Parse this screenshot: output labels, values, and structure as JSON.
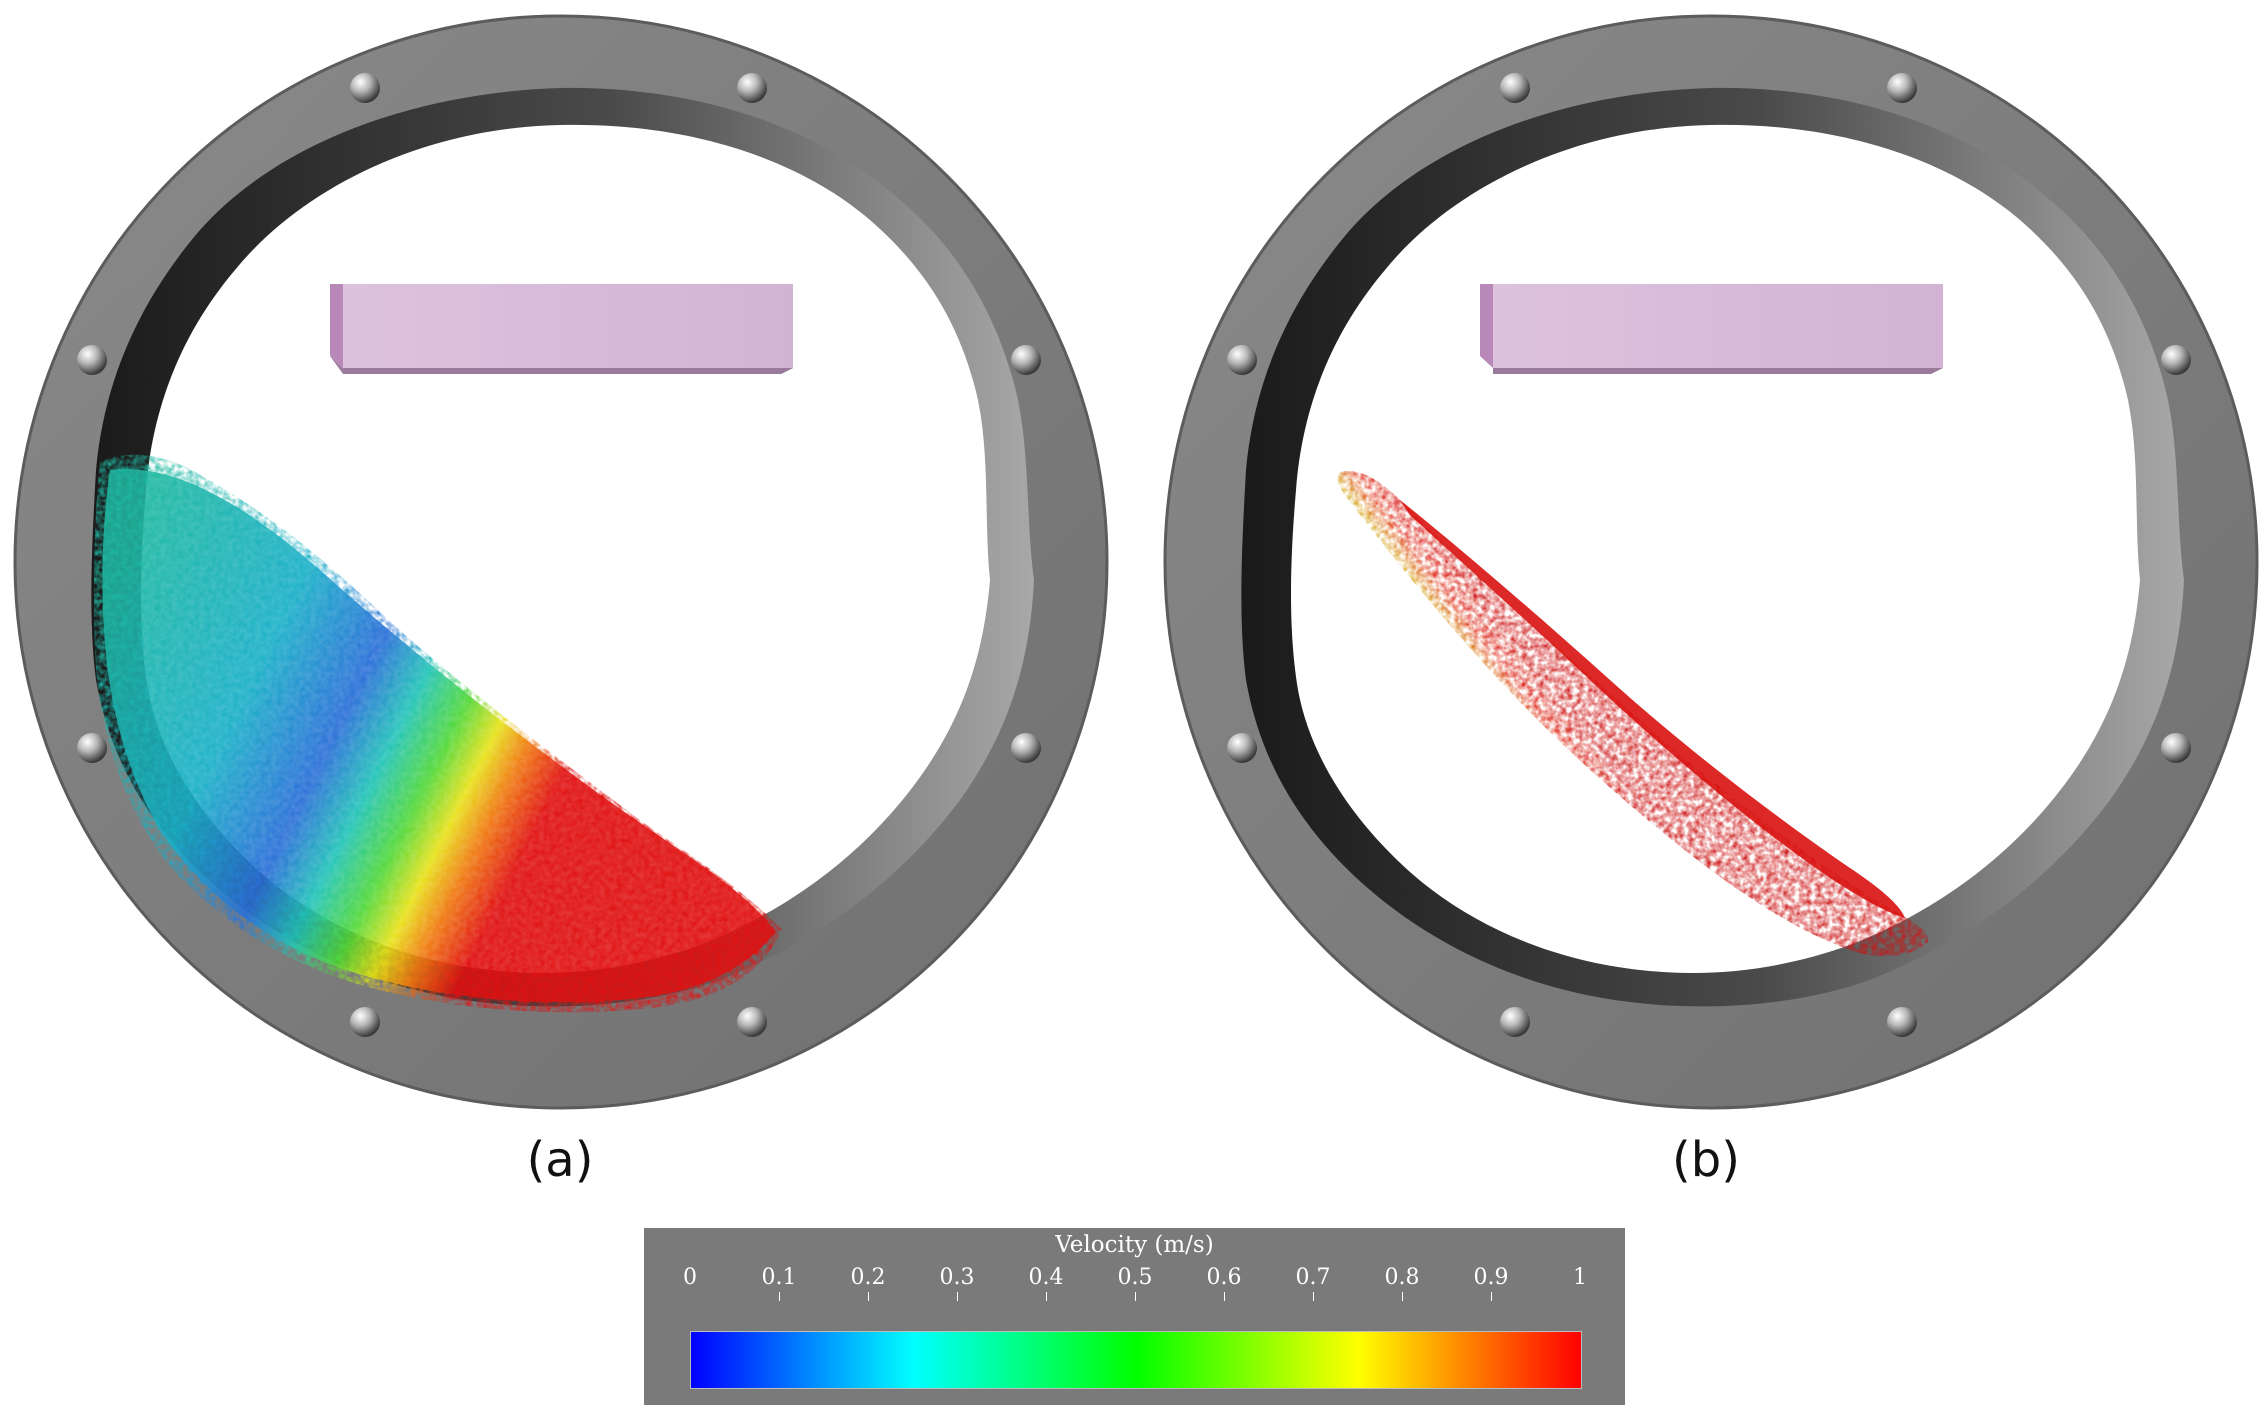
{
  "panels": [
    {
      "label": "(a)"
    },
    {
      "label": "(b)"
    }
  ],
  "legend": {
    "title": "Velocity (m/s)",
    "ticks": [
      "0",
      "0.1",
      "0.2",
      "0.3",
      "0.4",
      "0.5",
      "0.6",
      "0.7",
      "0.8",
      "0.9",
      "1"
    ],
    "tick_values": [
      0,
      0.1,
      0.2,
      0.3,
      0.4,
      0.5,
      0.6,
      0.7,
      0.8,
      0.9,
      1
    ],
    "range": [
      0,
      1
    ],
    "colormap": [
      "#0000ff",
      "#00ffff",
      "#00ff00",
      "#ffff00",
      "#ff0000"
    ]
  },
  "colors": {
    "drum_ring": "#7f7f7f",
    "drum_ring_inner": "#5a5a5a",
    "liner": "#3a3a3a",
    "baffle": "#d9b8d9",
    "background": "#ffffff"
  }
}
